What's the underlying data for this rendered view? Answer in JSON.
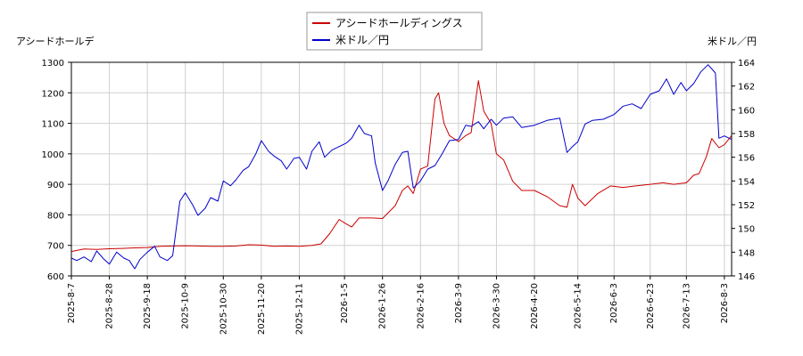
{
  "chart_data": {
    "type": "line",
    "grid": true,
    "legend_placement": "top-center",
    "left_axis_label": "アシードホールデ",
    "right_axis_label": "米ドル／円",
    "left_ylim": [
      600,
      1300
    ],
    "left_ticks": [
      600,
      700,
      800,
      900,
      1000,
      1100,
      1200,
      1300
    ],
    "right_ylim": [
      146,
      164
    ],
    "right_ticks": [
      146,
      148,
      150,
      152,
      154,
      156,
      158,
      160,
      162,
      164
    ],
    "x_range": [
      "2025-08-07",
      "2026-08-07"
    ],
    "x_tick_labels": [
      "2025-8-7",
      "2025-8-28",
      "2025-9-18",
      "2025-10-9",
      "2025-10-30",
      "2025-11-20",
      "2025-12-11",
      "2026-1-5",
      "2026-1-26",
      "2026-2-16",
      "2026-3-9",
      "2026-3-30",
      "2026-4-20",
      "2026-5-14",
      "2026-6-3",
      "2026-6-23",
      "2026-7-13",
      "2026-8-3"
    ],
    "series": [
      {
        "name": "アシードホールディングス",
        "color": "#cc0000",
        "axis": "left",
        "points": [
          [
            "2025-08-07",
            680
          ],
          [
            "2025-08-14",
            688
          ],
          [
            "2025-08-21",
            687
          ],
          [
            "2025-08-28",
            689
          ],
          [
            "2025-09-04",
            690
          ],
          [
            "2025-09-11",
            692
          ],
          [
            "2025-09-18",
            693
          ],
          [
            "2025-09-25",
            697
          ],
          [
            "2025-10-02",
            698
          ],
          [
            "2025-10-09",
            699
          ],
          [
            "2025-10-16",
            698
          ],
          [
            "2025-10-23",
            697
          ],
          [
            "2025-10-30",
            697
          ],
          [
            "2025-11-06",
            698
          ],
          [
            "2025-11-13",
            702
          ],
          [
            "2025-11-20",
            701
          ],
          [
            "2025-11-27",
            697
          ],
          [
            "2025-12-04",
            698
          ],
          [
            "2025-12-11",
            697
          ],
          [
            "2025-12-18",
            700
          ],
          [
            "2025-12-23",
            705
          ],
          [
            "2025-12-28",
            740
          ],
          [
            "2026-01-02",
            785
          ],
          [
            "2026-01-06",
            770
          ],
          [
            "2026-01-09",
            760
          ],
          [
            "2026-01-13",
            790
          ],
          [
            "2026-01-20",
            790
          ],
          [
            "2026-01-26",
            788
          ],
          [
            "2026-02-02",
            830
          ],
          [
            "2026-02-06",
            880
          ],
          [
            "2026-02-09",
            895
          ],
          [
            "2026-02-12",
            870
          ],
          [
            "2026-02-16",
            950
          ],
          [
            "2026-02-20",
            960
          ],
          [
            "2026-02-24",
            1180
          ],
          [
            "2026-02-26",
            1200
          ],
          [
            "2026-03-01",
            1100
          ],
          [
            "2026-03-04",
            1060
          ],
          [
            "2026-03-09",
            1040
          ],
          [
            "2026-03-13",
            1060
          ],
          [
            "2026-03-16",
            1070
          ],
          [
            "2026-03-20",
            1240
          ],
          [
            "2026-03-23",
            1140
          ],
          [
            "2026-03-27",
            1100
          ],
          [
            "2026-03-30",
            1000
          ],
          [
            "2026-04-03",
            980
          ],
          [
            "2026-04-08",
            910
          ],
          [
            "2026-04-13",
            880
          ],
          [
            "2026-04-20",
            880
          ],
          [
            "2026-04-27",
            860
          ],
          [
            "2026-05-04",
            830
          ],
          [
            "2026-05-08",
            825
          ],
          [
            "2026-05-11",
            900
          ],
          [
            "2026-05-14",
            855
          ],
          [
            "2026-05-18",
            830
          ],
          [
            "2026-05-25",
            870
          ],
          [
            "2026-06-01",
            895
          ],
          [
            "2026-06-08",
            890
          ],
          [
            "2026-06-15",
            895
          ],
          [
            "2026-06-23",
            900
          ],
          [
            "2026-06-30",
            905
          ],
          [
            "2026-07-06",
            900
          ],
          [
            "2026-07-13",
            905
          ],
          [
            "2026-07-17",
            930
          ],
          [
            "2026-07-20",
            935
          ],
          [
            "2026-07-24",
            990
          ],
          [
            "2026-07-27",
            1050
          ],
          [
            "2026-07-31",
            1020
          ],
          [
            "2026-08-03",
            1030
          ],
          [
            "2026-08-07",
            1060
          ]
        ]
      },
      {
        "name": "米ドル／円",
        "color": "#0000cc",
        "axis": "right",
        "points": [
          [
            "2025-08-07",
            147.5
          ],
          [
            "2025-08-10",
            147.3
          ],
          [
            "2025-08-14",
            147.6
          ],
          [
            "2025-08-18",
            147.2
          ],
          [
            "2025-08-21",
            148.1
          ],
          [
            "2025-08-25",
            147.4
          ],
          [
            "2025-08-28",
            147.0
          ],
          [
            "2025-09-01",
            148.0
          ],
          [
            "2025-09-05",
            147.5
          ],
          [
            "2025-09-08",
            147.3
          ],
          [
            "2025-09-11",
            146.6
          ],
          [
            "2025-09-14",
            147.4
          ],
          [
            "2025-09-18",
            148.0
          ],
          [
            "2025-09-22",
            148.5
          ],
          [
            "2025-09-25",
            147.6
          ],
          [
            "2025-09-29",
            147.3
          ],
          [
            "2025-10-02",
            147.7
          ],
          [
            "2025-10-06",
            152.3
          ],
          [
            "2025-10-09",
            153.0
          ],
          [
            "2025-10-13",
            152.0
          ],
          [
            "2025-10-16",
            151.1
          ],
          [
            "2025-10-20",
            151.7
          ],
          [
            "2025-10-23",
            152.6
          ],
          [
            "2025-10-27",
            152.3
          ],
          [
            "2025-10-30",
            154.0
          ],
          [
            "2025-11-03",
            153.6
          ],
          [
            "2025-11-06",
            154.1
          ],
          [
            "2025-11-10",
            154.9
          ],
          [
            "2025-11-13",
            155.2
          ],
          [
            "2025-11-17",
            156.3
          ],
          [
            "2025-11-20",
            157.4
          ],
          [
            "2025-11-24",
            156.5
          ],
          [
            "2025-11-27",
            156.1
          ],
          [
            "2025-12-01",
            155.7
          ],
          [
            "2025-12-04",
            155.0
          ],
          [
            "2025-12-08",
            155.9
          ],
          [
            "2025-12-11",
            156.0
          ],
          [
            "2025-12-15",
            155.0
          ],
          [
            "2025-12-18",
            156.5
          ],
          [
            "2025-12-22",
            157.3
          ],
          [
            "2025-12-25",
            156.0
          ],
          [
            "2025-12-29",
            156.6
          ],
          [
            "2026-01-02",
            156.9
          ],
          [
            "2026-01-06",
            157.2
          ],
          [
            "2026-01-09",
            157.6
          ],
          [
            "2026-01-13",
            158.7
          ],
          [
            "2026-01-16",
            158.0
          ],
          [
            "2026-01-20",
            157.8
          ],
          [
            "2026-01-22",
            155.5
          ],
          [
            "2026-01-26",
            153.2
          ],
          [
            "2026-01-29",
            154.0
          ],
          [
            "2026-02-02",
            155.4
          ],
          [
            "2026-02-06",
            156.4
          ],
          [
            "2026-02-09",
            156.5
          ],
          [
            "2026-02-12",
            153.4
          ],
          [
            "2026-02-16",
            154.0
          ],
          [
            "2026-02-20",
            155.0
          ],
          [
            "2026-02-24",
            155.3
          ],
          [
            "2026-02-28",
            156.3
          ],
          [
            "2026-03-04",
            157.4
          ],
          [
            "2026-03-09",
            157.5
          ],
          [
            "2026-03-13",
            158.7
          ],
          [
            "2026-03-16",
            158.6
          ],
          [
            "2026-03-20",
            159.0
          ],
          [
            "2026-03-23",
            158.4
          ],
          [
            "2026-03-27",
            159.2
          ],
          [
            "2026-03-30",
            158.7
          ],
          [
            "2026-04-03",
            159.3
          ],
          [
            "2026-04-08",
            159.4
          ],
          [
            "2026-04-13",
            158.5
          ],
          [
            "2026-04-20",
            158.7
          ],
          [
            "2026-04-27",
            159.1
          ],
          [
            "2026-05-04",
            159.3
          ],
          [
            "2026-05-08",
            156.4
          ],
          [
            "2026-05-11",
            156.9
          ],
          [
            "2026-05-14",
            157.3
          ],
          [
            "2026-05-18",
            158.8
          ],
          [
            "2026-05-22",
            159.1
          ],
          [
            "2026-05-28",
            159.2
          ],
          [
            "2026-06-03",
            159.6
          ],
          [
            "2026-06-08",
            160.3
          ],
          [
            "2026-06-13",
            160.5
          ],
          [
            "2026-06-18",
            160.1
          ],
          [
            "2026-06-23",
            161.3
          ],
          [
            "2026-06-28",
            161.6
          ],
          [
            "2026-07-02",
            162.6
          ],
          [
            "2026-07-06",
            161.3
          ],
          [
            "2026-07-10",
            162.3
          ],
          [
            "2026-07-13",
            161.6
          ],
          [
            "2026-07-17",
            162.2
          ],
          [
            "2026-07-21",
            163.2
          ],
          [
            "2026-07-25",
            163.8
          ],
          [
            "2026-07-29",
            163.1
          ],
          [
            "2026-07-31",
            157.6
          ],
          [
            "2026-08-03",
            157.8
          ],
          [
            "2026-08-07",
            157.5
          ]
        ]
      }
    ]
  }
}
